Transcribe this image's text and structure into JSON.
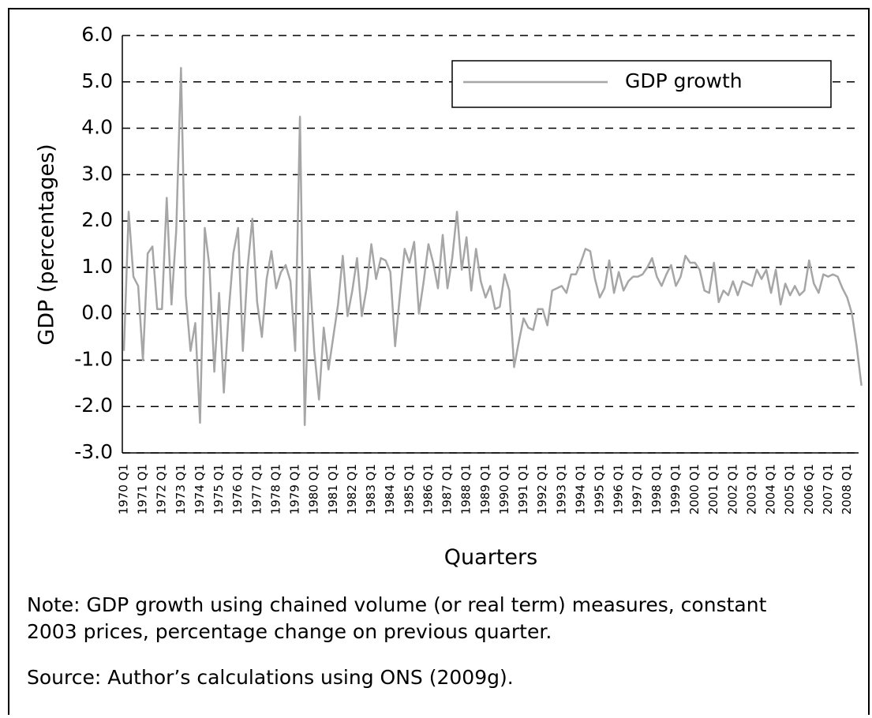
{
  "chart_data": {
    "type": "line",
    "y_label": "GDP (percentages)",
    "x_label": "Quarters",
    "note": [
      "Note:  GDP growth using chained volume (or real term) measures, constant",
      "2003 prices, percentage change on previous quarter."
    ],
    "source": "Source:  Author’s calculations using ONS (2009g).",
    "ylim": [
      -3,
      6
    ],
    "yticks": [
      {
        "value": -3,
        "label": "-3.0"
      },
      {
        "value": -2,
        "label": "-2.0"
      },
      {
        "value": -1,
        "label": "-1.0"
      },
      {
        "value": 0,
        "label": "0.0"
      },
      {
        "value": 1,
        "label": "1.0"
      },
      {
        "value": 2,
        "label": "2.0"
      },
      {
        "value": 3,
        "label": "3.0"
      },
      {
        "value": 4,
        "label": "4.0"
      },
      {
        "value": 5,
        "label": "5.0"
      },
      {
        "value": 6,
        "label": "6.0"
      }
    ],
    "grid": true,
    "legend": "top-right",
    "categories": [
      "1970 Q1",
      null,
      null,
      null,
      "1971 Q1",
      null,
      null,
      null,
      "1972 Q1",
      null,
      null,
      null,
      "1973 Q1",
      null,
      null,
      null,
      "1974 Q1",
      null,
      null,
      null,
      "1975 Q1",
      null,
      null,
      null,
      "1976 Q1",
      null,
      null,
      null,
      "1977 Q1",
      null,
      null,
      null,
      "1978 Q1",
      null,
      null,
      null,
      "1979 Q1",
      null,
      null,
      null,
      "1980 Q1",
      null,
      null,
      null,
      "1981 Q1",
      null,
      null,
      null,
      "1982 Q1",
      null,
      null,
      null,
      "1983 Q1",
      null,
      null,
      null,
      "1984 Q1",
      null,
      null,
      null,
      "1985 Q1",
      null,
      null,
      null,
      "1986 Q1",
      null,
      null,
      null,
      "1987 Q1",
      null,
      null,
      null,
      "1988 Q1",
      null,
      null,
      null,
      "1989 Q1",
      null,
      null,
      null,
      "1990 Q1",
      null,
      null,
      null,
      "1991 Q1",
      null,
      null,
      null,
      "1992 Q1",
      null,
      null,
      null,
      "1993 Q1",
      null,
      null,
      null,
      "1994 Q1",
      null,
      null,
      null,
      "1995 Q1",
      null,
      null,
      null,
      "1996 Q1",
      null,
      null,
      null,
      "1997 Q1",
      null,
      null,
      null,
      "1998 Q1",
      null,
      null,
      null,
      "1999 Q1",
      null,
      null,
      null,
      "2000 Q1",
      null,
      null,
      null,
      "2001 Q1",
      null,
      null,
      null,
      "2002 Q1",
      null,
      null,
      null,
      "2003 Q1",
      null,
      null,
      null,
      "2004 Q1",
      null,
      null,
      null,
      "2005 Q1",
      null,
      null,
      null,
      "2006 Q1",
      null,
      null,
      null,
      "2007 Q1",
      null,
      null,
      null,
      "2008 Q1",
      null,
      null,
      null
    ],
    "series": [
      {
        "name": "GDP growth",
        "color": "#a6a6a6",
        "values": [
          -0.8,
          2.2,
          0.8,
          0.6,
          -1.0,
          1.3,
          1.45,
          0.1,
          0.1,
          2.5,
          0.2,
          1.8,
          5.3,
          0.4,
          -0.8,
          -0.2,
          -2.35,
          1.85,
          1.0,
          -1.25,
          0.45,
          -1.7,
          0.0,
          1.3,
          1.85,
          -0.8,
          1.0,
          2.05,
          0.25,
          -0.5,
          0.75,
          1.35,
          0.55,
          0.9,
          1.05,
          0.7,
          -0.8,
          4.25,
          -2.4,
          1.0,
          -0.8,
          -1.85,
          -0.3,
          -1.2,
          -0.5,
          0.2,
          1.25,
          -0.05,
          0.5,
          1.2,
          -0.05,
          0.55,
          1.5,
          0.75,
          1.2,
          1.15,
          0.9,
          -0.7,
          0.4,
          1.4,
          1.1,
          1.55,
          0.0,
          0.7,
          1.5,
          1.1,
          0.55,
          1.7,
          0.55,
          1.2,
          2.2,
          0.95,
          1.65,
          0.5,
          1.4,
          0.7,
          0.35,
          0.6,
          0.1,
          0.15,
          0.85,
          0.5,
          -1.15,
          -0.6,
          -0.1,
          -0.3,
          -0.35,
          0.1,
          0.1,
          -0.25,
          0.5,
          0.55,
          0.6,
          0.45,
          0.85,
          0.85,
          1.1,
          1.4,
          1.35,
          0.75,
          0.35,
          0.55,
          1.15,
          0.45,
          0.9,
          0.5,
          0.7,
          0.8,
          0.8,
          0.85,
          1.0,
          1.2,
          0.8,
          0.6,
          0.85,
          1.05,
          0.6,
          0.8,
          1.25,
          1.1,
          1.1,
          0.95,
          0.5,
          0.45,
          1.1,
          0.25,
          0.5,
          0.4,
          0.7,
          0.4,
          0.7,
          0.65,
          0.6,
          0.95,
          0.75,
          0.95,
          0.45,
          0.95,
          0.2,
          0.65,
          0.4,
          0.6,
          0.4,
          0.5,
          1.15,
          0.65,
          0.45,
          0.85,
          0.8,
          0.85,
          0.8,
          0.55,
          0.35,
          0.0,
          -0.7,
          -1.55
        ]
      }
    ]
  }
}
